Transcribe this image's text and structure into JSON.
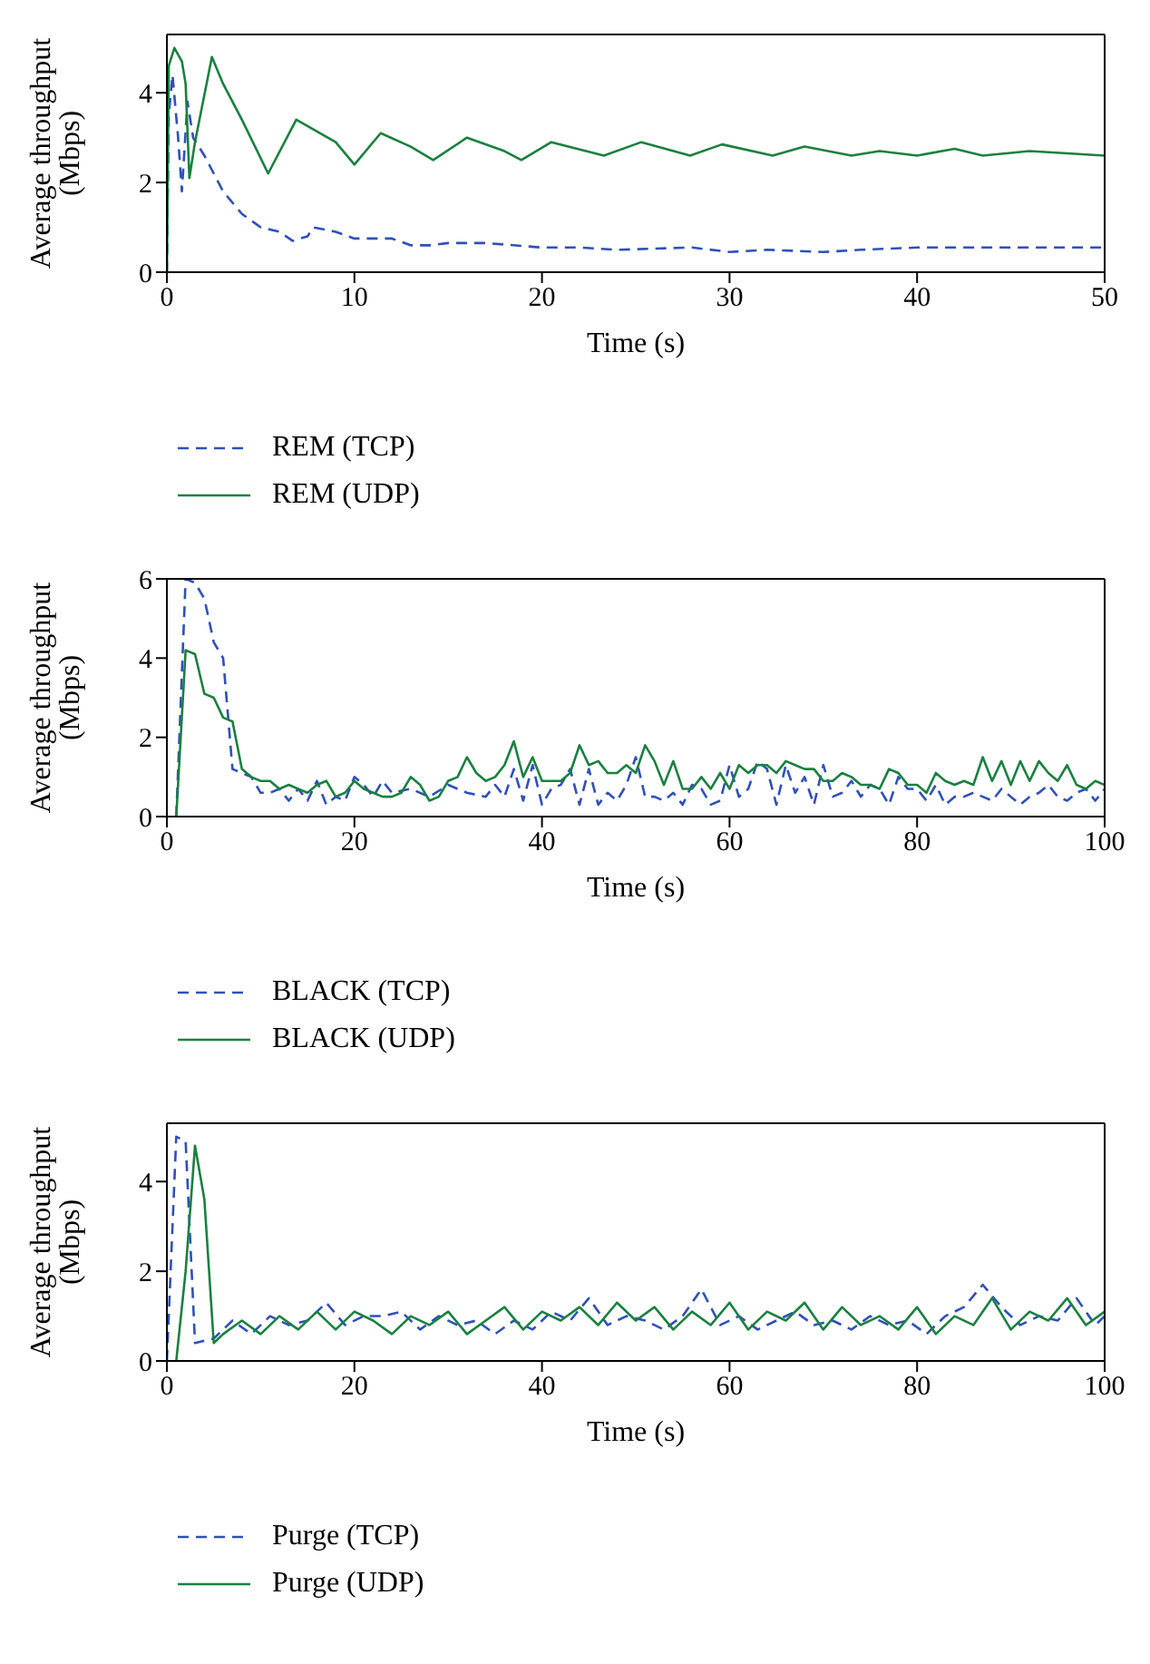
{
  "chart_data": [
    {
      "type": "line",
      "xlabel": "Time (s)",
      "ylabel": "Average throughput (Mbps)",
      "xlim": [
        0,
        50
      ],
      "xticks": [
        0,
        10,
        20,
        30,
        40,
        50
      ],
      "ylim": [
        0,
        5.3
      ],
      "yticks": [
        0,
        2,
        4
      ],
      "legend": "bottom",
      "series": [
        {
          "name": "REM (TCP)",
          "color": "#3050b8",
          "line_style": "dashed",
          "x": [
            0,
            0.1,
            0.3,
            0.6,
            0.8,
            1.1,
            1.4,
            2,
            3,
            4,
            5,
            6,
            6.7,
            7.5,
            7.8,
            9,
            10,
            12,
            13,
            14,
            15,
            17,
            20,
            22,
            24,
            28,
            30,
            32,
            35,
            37,
            40,
            44,
            50
          ],
          "values": [
            0,
            3.5,
            4.4,
            3.0,
            1.8,
            3.8,
            3.0,
            2.6,
            1.8,
            1.3,
            1.0,
            0.9,
            0.7,
            0.8,
            1.0,
            0.9,
            0.75,
            0.75,
            0.6,
            0.6,
            0.65,
            0.65,
            0.55,
            0.55,
            0.5,
            0.55,
            0.45,
            0.5,
            0.45,
            0.5,
            0.55,
            0.55,
            0.55
          ]
        },
        {
          "name": "REM (UDP)",
          "color": "#1a8040",
          "line_style": "solid",
          "x": [
            0,
            0.1,
            0.4,
            0.8,
            1.0,
            1.2,
            1.5,
            2.4,
            3,
            4,
            5.4,
            6.9,
            9,
            10,
            11.4,
            13,
            14.2,
            16,
            18,
            18.9,
            20.5,
            23.3,
            25.3,
            27.9,
            29.6,
            32.3,
            34,
            36.5,
            38,
            40,
            42,
            43.5,
            46,
            50
          ],
          "values": [
            0,
            4.6,
            5.0,
            4.7,
            4.2,
            2.1,
            2.9,
            4.8,
            4.2,
            3.4,
            2.2,
            3.4,
            2.9,
            2.4,
            3.1,
            2.8,
            2.5,
            3.0,
            2.7,
            2.5,
            2.9,
            2.6,
            2.9,
            2.6,
            2.85,
            2.6,
            2.8,
            2.6,
            2.7,
            2.6,
            2.75,
            2.6,
            2.7,
            2.6
          ]
        }
      ]
    },
    {
      "type": "line",
      "xlabel": "Time (s)",
      "ylabel": "Average throughput (Mbps)",
      "xlim": [
        0,
        100
      ],
      "xticks": [
        0,
        20,
        40,
        60,
        80,
        100
      ],
      "ylim": [
        0,
        6
      ],
      "yticks": [
        0,
        2,
        4,
        6
      ],
      "legend": "bottom",
      "series": [
        {
          "name": "BLACK (TCP)",
          "color": "#3050b8",
          "line_style": "dashed",
          "x": [
            1,
            2,
            3,
            4,
            5,
            6,
            7,
            8,
            9,
            10,
            11,
            12,
            13,
            14,
            15,
            16,
            17,
            18,
            19,
            20,
            21,
            22,
            23,
            24,
            26,
            28,
            30,
            32,
            34,
            35,
            36,
            37,
            38,
            39,
            40,
            41,
            42,
            43,
            44,
            45,
            46,
            47,
            48,
            49,
            50,
            51,
            52,
            53,
            54,
            55,
            56,
            57,
            58,
            59,
            60,
            61,
            62,
            63,
            64,
            65,
            66,
            67,
            68,
            69,
            70,
            71,
            72,
            73,
            74,
            75,
            76,
            77,
            78,
            79,
            80,
            81,
            82,
            83,
            84,
            85,
            86,
            87,
            88,
            89,
            90,
            91,
            92,
            93,
            94,
            95,
            96,
            97,
            98,
            99,
            100
          ],
          "values": [
            0,
            6.0,
            5.9,
            5.5,
            4.4,
            4.0,
            1.2,
            1.1,
            1.0,
            0.6,
            0.6,
            0.7,
            0.4,
            0.7,
            0.4,
            0.9,
            0.3,
            0.5,
            0.4,
            1.0,
            0.8,
            0.5,
            0.9,
            0.6,
            0.7,
            0.5,
            0.8,
            0.6,
            0.5,
            0.8,
            0.5,
            1.2,
            0.4,
            1.3,
            0.3,
            0.7,
            0.8,
            1.2,
            0.3,
            1.2,
            0.3,
            0.6,
            0.4,
            0.8,
            1.5,
            0.5,
            0.5,
            0.4,
            0.6,
            0.3,
            0.8,
            0.7,
            0.3,
            0.4,
            1.3,
            0.5,
            0.7,
            1.4,
            1.2,
            0.3,
            1.3,
            0.6,
            1.0,
            0.3,
            1.3,
            0.5,
            0.6,
            0.9,
            0.5,
            0.8,
            0.7,
            0.3,
            1.0,
            0.7,
            0.7,
            0.4,
            0.8,
            0.3,
            0.5,
            0.5,
            0.6,
            0.5,
            0.4,
            0.7,
            0.5,
            0.3,
            0.5,
            0.6,
            0.8,
            0.5,
            0.4,
            0.6,
            0.7,
            0.4,
            0.7
          ]
        },
        {
          "name": "BLACK (UDP)",
          "color": "#1a8040",
          "line_style": "solid",
          "x": [
            1,
            2,
            3,
            4,
            5,
            6,
            7,
            8,
            9,
            10,
            11,
            12,
            13,
            14,
            15,
            16,
            17,
            18,
            19,
            20,
            21,
            22,
            23,
            24,
            25,
            26,
            27,
            28,
            29,
            30,
            31,
            32,
            33,
            34,
            35,
            36,
            37,
            38,
            39,
            40,
            41,
            42,
            43,
            44,
            45,
            46,
            47,
            48,
            49,
            50,
            51,
            52,
            53,
            54,
            55,
            56,
            57,
            58,
            59,
            60,
            61,
            62,
            63,
            64,
            65,
            66,
            67,
            68,
            69,
            70,
            71,
            72,
            73,
            74,
            75,
            76,
            77,
            78,
            79,
            80,
            81,
            82,
            83,
            84,
            85,
            86,
            87,
            88,
            89,
            90,
            91,
            92,
            93,
            94,
            95,
            96,
            97,
            98,
            99,
            100
          ],
          "values": [
            0,
            4.2,
            4.1,
            3.1,
            3.0,
            2.5,
            2.4,
            1.2,
            1.0,
            0.9,
            0.9,
            0.7,
            0.8,
            0.7,
            0.6,
            0.8,
            0.9,
            0.5,
            0.6,
            0.9,
            0.7,
            0.6,
            0.5,
            0.5,
            0.6,
            1.0,
            0.8,
            0.4,
            0.5,
            0.9,
            1.0,
            1.5,
            1.1,
            0.9,
            1.0,
            1.3,
            1.9,
            1.0,
            1.5,
            0.9,
            0.9,
            0.9,
            1.1,
            1.8,
            1.3,
            1.4,
            1.1,
            1.1,
            1.3,
            1.1,
            1.8,
            1.4,
            0.8,
            1.4,
            0.7,
            0.7,
            1.0,
            0.7,
            1.1,
            0.7,
            1.3,
            1.1,
            1.3,
            1.3,
            1.1,
            1.4,
            1.3,
            1.2,
            1.2,
            0.9,
            0.9,
            1.1,
            1.0,
            0.8,
            0.8,
            0.7,
            1.2,
            1.1,
            0.8,
            0.8,
            0.6,
            1.1,
            0.9,
            0.8,
            0.9,
            0.8,
            1.5,
            0.9,
            1.4,
            0.8,
            1.4,
            0.9,
            1.4,
            1.1,
            0.9,
            1.3,
            0.8,
            0.7,
            0.9,
            0.8
          ]
        }
      ]
    },
    {
      "type": "line",
      "xlabel": "Time (s)",
      "ylabel": "Average throughput (Mbps)",
      "xlim": [
        0,
        100
      ],
      "xticks": [
        0,
        20,
        40,
        60,
        80,
        100
      ],
      "ylim": [
        0,
        5.3
      ],
      "yticks": [
        0,
        2,
        4
      ],
      "legend": "bottom",
      "series": [
        {
          "name": "Purge (TCP)",
          "color": "#3050b8",
          "line_style": "dashed",
          "x": [
            0,
            1,
            2,
            3,
            5,
            7,
            9,
            11,
            13,
            15,
            17,
            19,
            21,
            23,
            25,
            27,
            29,
            31,
            33,
            35,
            37,
            39,
            41,
            43,
            45,
            47,
            49,
            51,
            53,
            55,
            57,
            59,
            61,
            63,
            65,
            67,
            69,
            71,
            73,
            75,
            77,
            79,
            81,
            83,
            85,
            87,
            89,
            91,
            93,
            95,
            97,
            99,
            100
          ],
          "values": [
            0,
            5.0,
            4.9,
            0.4,
            0.5,
            0.9,
            0.6,
            1.0,
            0.8,
            0.9,
            1.3,
            0.8,
            1.0,
            1.0,
            1.1,
            0.7,
            1.0,
            0.8,
            0.9,
            0.6,
            0.9,
            0.7,
            1.1,
            0.9,
            1.4,
            0.8,
            1.0,
            0.9,
            0.7,
            1.0,
            1.6,
            0.8,
            1.0,
            0.7,
            0.9,
            1.1,
            0.8,
            0.9,
            0.7,
            1.0,
            0.8,
            0.9,
            0.6,
            1.0,
            1.2,
            1.7,
            1.2,
            0.8,
            1.0,
            0.9,
            1.4,
            0.8,
            1.0
          ]
        },
        {
          "name": "Purge (UDP)",
          "color": "#1a8040",
          "line_style": "solid",
          "x": [
            1,
            2,
            3,
            4,
            5,
            6,
            8,
            10,
            12,
            14,
            16,
            18,
            20,
            22,
            24,
            26,
            28,
            30,
            32,
            34,
            36,
            38,
            40,
            42,
            44,
            46,
            48,
            50,
            52,
            54,
            56,
            58,
            60,
            62,
            64,
            66,
            68,
            70,
            72,
            74,
            76,
            78,
            80,
            82,
            84,
            86,
            88,
            90,
            92,
            94,
            96,
            98,
            100
          ],
          "values": [
            0,
            2.0,
            4.8,
            3.6,
            0.4,
            0.6,
            0.9,
            0.6,
            1.0,
            0.7,
            1.1,
            0.7,
            1.1,
            0.9,
            0.6,
            1.0,
            0.8,
            1.1,
            0.6,
            0.9,
            1.2,
            0.7,
            1.1,
            0.9,
            1.2,
            0.8,
            1.3,
            0.9,
            1.2,
            0.7,
            1.1,
            0.8,
            1.3,
            0.7,
            1.1,
            0.9,
            1.3,
            0.7,
            1.2,
            0.8,
            1.0,
            0.7,
            1.2,
            0.6,
            1.0,
            0.8,
            1.4,
            0.7,
            1.1,
            0.9,
            1.4,
            0.8,
            1.1
          ]
        }
      ]
    }
  ]
}
